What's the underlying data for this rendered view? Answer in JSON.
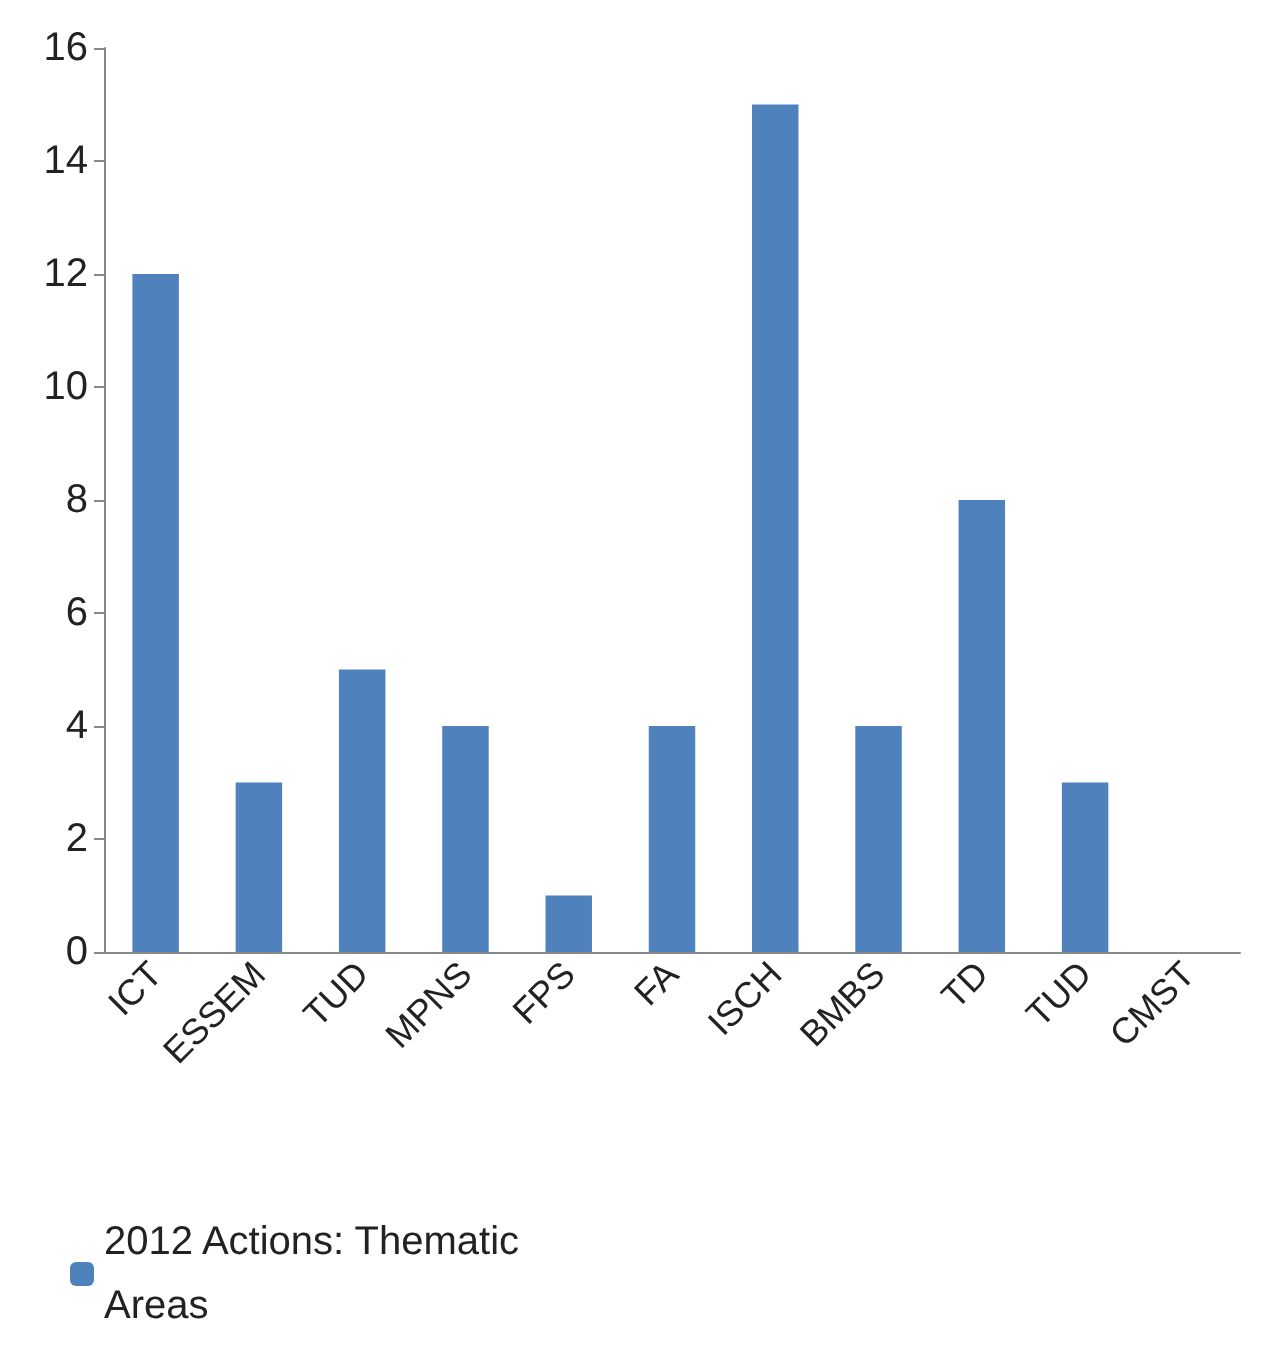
{
  "chart_data": {
    "type": "bar",
    "categories": [
      "ICT",
      "ESSEM",
      "TUD",
      "MPNS",
      "FPS",
      "FA",
      "ISCH",
      "BMBS",
      "TD",
      "TUD",
      "CMST"
    ],
    "series": [
      {
        "name": "2012 Actions: Thematic Areas",
        "color": "#4f81bd",
        "values": [
          12,
          3,
          5,
          4,
          1,
          4,
          15,
          4,
          8,
          3,
          0
        ]
      }
    ],
    "ylim": [
      0,
      16
    ],
    "yticks": [
      0,
      2,
      4,
      6,
      8,
      10,
      12,
      14,
      16
    ],
    "grid": false,
    "legend": "bottom left"
  }
}
